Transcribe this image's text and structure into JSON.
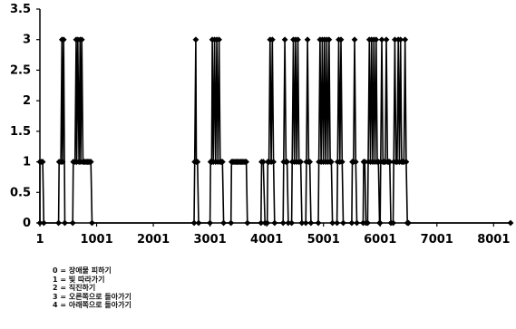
{
  "chart_data": {
    "type": "line",
    "xlim": [
      1,
      8300
    ],
    "ylim": [
      0,
      3.5
    ],
    "x_ticks": [
      1,
      1001,
      2001,
      3001,
      4001,
      5001,
      6001,
      7001,
      8001
    ],
    "x_tick_labels": [
      "1",
      "1001",
      "2001",
      "3001",
      "4001",
      "5001",
      "6001",
      "7001",
      "8001"
    ],
    "y_ticks": [
      0,
      0.5,
      1,
      1.5,
      2,
      2.5,
      3,
      3.5
    ],
    "y_tick_labels": [
      "0",
      "0.5",
      "1",
      "1.5",
      "2",
      "2.5",
      "3",
      "3.5"
    ],
    "grid": false,
    "series": [
      {
        "color": "#000000",
        "markers": "diamond",
        "note": "dense time series of discrete behavior codes (0,1,3); each entry is [x, y], consecutive entries connected",
        "points": [
          [
            1,
            0
          ],
          [
            1,
            1
          ],
          [
            30,
            1
          ],
          [
            50,
            1
          ],
          [
            70,
            0
          ],
          [
            330,
            0
          ],
          [
            340,
            1
          ],
          [
            370,
            1
          ],
          [
            390,
            3
          ],
          [
            400,
            1
          ],
          [
            420,
            3
          ],
          [
            440,
            0
          ],
          [
            580,
            0
          ],
          [
            590,
            1
          ],
          [
            620,
            1
          ],
          [
            640,
            3
          ],
          [
            650,
            1
          ],
          [
            670,
            3
          ],
          [
            690,
            1
          ],
          [
            710,
            3
          ],
          [
            720,
            1
          ],
          [
            740,
            3
          ],
          [
            760,
            1
          ],
          [
            780,
            1
          ],
          [
            800,
            1
          ],
          [
            820,
            1
          ],
          [
            840,
            1
          ],
          [
            860,
            1
          ],
          [
            880,
            1
          ],
          [
            900,
            1
          ],
          [
            920,
            0
          ],
          [
            2720,
            0
          ],
          [
            2730,
            1
          ],
          [
            2750,
            3
          ],
          [
            2760,
            1
          ],
          [
            2780,
            1
          ],
          [
            2800,
            0
          ],
          [
            3000,
            0
          ],
          [
            3010,
            1
          ],
          [
            3030,
            1
          ],
          [
            3040,
            3
          ],
          [
            3060,
            1
          ],
          [
            3080,
            3
          ],
          [
            3100,
            1
          ],
          [
            3120,
            3
          ],
          [
            3140,
            1
          ],
          [
            3160,
            3
          ],
          [
            3180,
            1
          ],
          [
            3200,
            1
          ],
          [
            3220,
            1
          ],
          [
            3240,
            0
          ],
          [
            3370,
            0
          ],
          [
            3380,
            1
          ],
          [
            3400,
            1
          ],
          [
            3420,
            1
          ],
          [
            3440,
            1
          ],
          [
            3460,
            1
          ],
          [
            3480,
            1
          ],
          [
            3500,
            1
          ],
          [
            3520,
            1
          ],
          [
            3540,
            1
          ],
          [
            3560,
            1
          ],
          [
            3580,
            1
          ],
          [
            3600,
            1
          ],
          [
            3620,
            1
          ],
          [
            3640,
            1
          ],
          [
            3660,
            0
          ],
          [
            3900,
            0
          ],
          [
            3910,
            1
          ],
          [
            3940,
            1
          ],
          [
            3970,
            0
          ],
          [
            4010,
            0
          ],
          [
            4020,
            1
          ],
          [
            4040,
            1
          ],
          [
            4060,
            3
          ],
          [
            4080,
            1
          ],
          [
            4100,
            3
          ],
          [
            4120,
            1
          ],
          [
            4140,
            0
          ],
          [
            4290,
            0
          ],
          [
            4300,
            1
          ],
          [
            4320,
            3
          ],
          [
            4340,
            1
          ],
          [
            4360,
            1
          ],
          [
            4380,
            0
          ],
          [
            4440,
            0
          ],
          [
            4450,
            1
          ],
          [
            4470,
            3
          ],
          [
            4490,
            1
          ],
          [
            4510,
            3
          ],
          [
            4530,
            1
          ],
          [
            4550,
            3
          ],
          [
            4570,
            1
          ],
          [
            4600,
            1
          ],
          [
            4620,
            0
          ],
          [
            4690,
            0
          ],
          [
            4700,
            1
          ],
          [
            4720,
            3
          ],
          [
            4740,
            1
          ],
          [
            4760,
            1
          ],
          [
            4780,
            0
          ],
          [
            4910,
            0
          ],
          [
            4920,
            1
          ],
          [
            4940,
            3
          ],
          [
            4960,
            1
          ],
          [
            4980,
            3
          ],
          [
            5000,
            1
          ],
          [
            5020,
            3
          ],
          [
            5040,
            1
          ],
          [
            5060,
            3
          ],
          [
            5080,
            1
          ],
          [
            5100,
            3
          ],
          [
            5120,
            1
          ],
          [
            5140,
            1
          ],
          [
            5160,
            0
          ],
          [
            5240,
            0
          ],
          [
            5250,
            1
          ],
          [
            5270,
            3
          ],
          [
            5290,
            1
          ],
          [
            5310,
            3
          ],
          [
            5330,
            1
          ],
          [
            5350,
            0
          ],
          [
            5500,
            0
          ],
          [
            5510,
            1
          ],
          [
            5530,
            1
          ],
          [
            5550,
            3
          ],
          [
            5570,
            1
          ],
          [
            5590,
            0
          ],
          [
            5700,
            0
          ],
          [
            5710,
            1
          ],
          [
            5730,
            1
          ],
          [
            5750,
            0
          ],
          [
            5780,
            0
          ],
          [
            5790,
            1
          ],
          [
            5810,
            3
          ],
          [
            5830,
            1
          ],
          [
            5850,
            3
          ],
          [
            5870,
            1
          ],
          [
            5890,
            3
          ],
          [
            5910,
            1
          ],
          [
            5930,
            3
          ],
          [
            5950,
            1
          ],
          [
            5970,
            1
          ],
          [
            5990,
            0
          ],
          [
            6000,
            0
          ],
          [
            6010,
            1
          ],
          [
            6030,
            3
          ],
          [
            6050,
            1
          ],
          [
            6070,
            1
          ],
          [
            6090,
            1
          ],
          [
            6110,
            3
          ],
          [
            6130,
            1
          ],
          [
            6150,
            1
          ],
          [
            6170,
            1
          ],
          [
            6190,
            0
          ],
          [
            6230,
            0
          ],
          [
            6240,
            1
          ],
          [
            6260,
            3
          ],
          [
            6280,
            1
          ],
          [
            6300,
            1
          ],
          [
            6320,
            3
          ],
          [
            6340,
            1
          ],
          [
            6360,
            3
          ],
          [
            6380,
            1
          ],
          [
            6400,
            1
          ],
          [
            6420,
            1
          ],
          [
            6440,
            3
          ],
          [
            6460,
            1
          ],
          [
            6480,
            0
          ],
          [
            6500,
            0
          ],
          [
            8300,
            0
          ]
        ]
      }
    ]
  },
  "legend": {
    "items": [
      "0 = 장애물 피하기",
      "1 = 빛 따라가기",
      "2 = 직진하기",
      "3 = 오른쪽으로 돌아가기",
      "4 = 아래쪽으로 돌아가기"
    ]
  }
}
